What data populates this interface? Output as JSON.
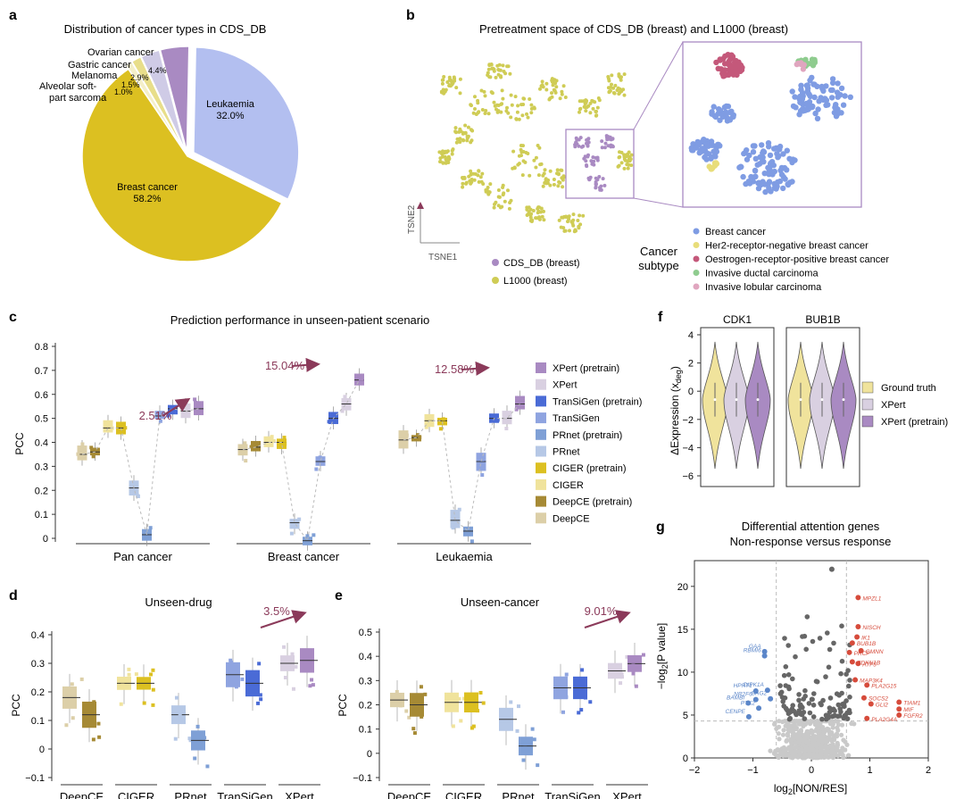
{
  "panel_labels": {
    "a": "a",
    "b": "b",
    "c": "c",
    "d": "d",
    "e": "e",
    "f": "f",
    "g": "g"
  },
  "colors": {
    "deepce": "#dccfa8",
    "deepce_pre": "#a68a35",
    "ciger": "#f0e39c",
    "ciger_pre": "#dcc021",
    "prnet": "#b6c8e6",
    "prnet_pre": "#7fa0d6",
    "transigen": "#8fa4e0",
    "transigen_pre": "#4a6bd6",
    "xpert": "#d9d0e1",
    "xpert_pre": "#a98ac2",
    "arrow": "#8b3a5a",
    "breast": "#7f9ce3",
    "her2neg": "#e8dd7a",
    "er_pos": "#c4587a",
    "ductal": "#8fcc8f",
    "lobular": "#e0a6bf",
    "cds": "#a98ac2",
    "l1000": "#cfcc55",
    "volcano_red": "#d64b3b",
    "volcano_blue": "#5b86c9",
    "volcano_dark": "#666666",
    "volcano_light": "#c9c9c9"
  },
  "chart_data": [
    {
      "id": "a",
      "type": "pie",
      "title": "Distribution of cancer types in CDS_DB",
      "slices": [
        {
          "label": "Breast cancer",
          "value": 58.2,
          "display": "58.2%"
        },
        {
          "label": "Leukaemia",
          "value": 32.0,
          "display": "32.0%"
        },
        {
          "label": "Ovarian cancer",
          "value": 4.4,
          "display": "4.4%"
        },
        {
          "label": "Gastric cancer",
          "value": 2.9,
          "display": "2.9%"
        },
        {
          "label": "Melanoma",
          "value": 1.5,
          "display": "1.5%"
        },
        {
          "label": "Alveolar soft-part sarcoma",
          "value": 1.0,
          "display": "1.0%"
        }
      ]
    },
    {
      "id": "b",
      "type": "scatter",
      "title": "Pretreatment space of  CDS_DB (breast) and L1000 (breast)",
      "xlabel": "TSNE1",
      "ylabel": "TSNE2",
      "legend": [
        {
          "label": "CDS_DB (breast)"
        },
        {
          "label": "L1000 (breast)"
        }
      ],
      "subtype_title": "Cancer subtype",
      "subtypes": [
        "Breast cancer",
        "Her2-receptor-negative breast cancer",
        "Oestrogen-receptor-positive breast cancer",
        "Invasive ductal carcinoma",
        "Invasive lobular carcinoma"
      ]
    },
    {
      "id": "c",
      "type": "box",
      "title": "Prediction performance in unseen-patient scenario",
      "ylabel": "PCC",
      "ylim": [
        0,
        0.8
      ],
      "yticks": [
        "0",
        "0.1",
        "0.2",
        "0.3",
        "0.4",
        "0.5",
        "0.6",
        "0.7",
        "0.8"
      ],
      "groups": [
        "Pan cancer",
        "Breast cancer",
        "Leukaemia"
      ],
      "methods": [
        "DeepCE",
        "DeepCE (pretrain)",
        "CIGER",
        "CIGER (pretrain)",
        "PRnet",
        "PRnet (pretrain)",
        "TranSiGen",
        "TranSiGen (pretrain)",
        "XPert",
        "XPert (pretrain)"
      ],
      "medians": [
        [
          0.35,
          0.36,
          0.46,
          0.46,
          0.21,
          0.015,
          0.51,
          0.54,
          0.53,
          0.54
        ],
        [
          0.37,
          0.38,
          0.4,
          0.4,
          0.065,
          -0.01,
          0.32,
          0.5,
          0.56,
          0.66
        ],
        [
          0.41,
          0.42,
          0.49,
          0.49,
          0.075,
          0.03,
          0.32,
          0.5,
          0.5,
          0.56
        ]
      ],
      "annotations": [
        "2.51%",
        "15.04%",
        "12.58%"
      ],
      "legend": [
        "XPert (pretrain)",
        "XPert",
        "TranSiGen (pretrain)",
        "TranSiGen",
        "PRnet (pretrain)",
        "PRnet",
        "CIGER (pretrain)",
        "CIGER",
        "DeepCE (pretrain)",
        "DeepCE"
      ]
    },
    {
      "id": "d",
      "type": "box",
      "title": "Unseen-drug",
      "ylabel": "PCC",
      "ylim": [
        -0.1,
        0.4
      ],
      "yticks": [
        "−0.1",
        "0",
        "0.1",
        "0.2",
        "0.3",
        "0.4"
      ],
      "categories": [
        "DeepCE",
        "CIGER",
        "PRnet",
        "TranSiGen",
        "XPert"
      ],
      "medians": [
        [
          0.18,
          0.12
        ],
        [
          0.23,
          0.23
        ],
        [
          0.12,
          0.03
        ],
        [
          0.26,
          0.23
        ],
        [
          0.3,
          0.31
        ]
      ],
      "annotation": "3.5%"
    },
    {
      "id": "e",
      "type": "box",
      "title": "Unseen-cancer",
      "ylabel": "PCC",
      "ylim": [
        -0.1,
        0.5
      ],
      "yticks": [
        "−0.1",
        "0",
        "0.1",
        "0.2",
        "0.3",
        "0.4",
        "0.5"
      ],
      "categories": [
        "DeepCE",
        "CIGER",
        "PRnet",
        "TranSiGen",
        "XPert"
      ],
      "medians": [
        [
          0.22,
          0.2
        ],
        [
          0.21,
          0.21
        ],
        [
          0.14,
          0.03
        ],
        [
          0.27,
          0.27
        ],
        [
          0.34,
          0.37
        ]
      ],
      "annotation": "9.01%"
    },
    {
      "id": "f",
      "type": "violin",
      "ylabel": "ΔExpression (x",
      "ylabel_sub": "deg",
      "ylabel_close": ")",
      "ylim": [
        -6,
        4
      ],
      "yticks": [
        "4",
        "2",
        "0",
        "−2",
        "−4",
        "−6"
      ],
      "panels": [
        "CDK1",
        "BUB1B"
      ],
      "legend": [
        "Ground truth",
        "XPert",
        "XPert (pretrain)"
      ]
    },
    {
      "id": "g",
      "type": "scatter",
      "title": "Differential attention genes",
      "subtitle": "Non-response versus response",
      "xlabel": "log",
      "xlabel_sub": "2",
      "xlabel_rest": "[NON/RES]",
      "ylabel": "−log",
      "ylabel_sub": "2",
      "ylabel_rest": "[P value]",
      "xticks": [
        "−2",
        "−1",
        "0",
        "1",
        "2"
      ],
      "yticks": [
        "0",
        "5",
        "10",
        "15",
        "20"
      ],
      "xlim": [
        -2,
        2
      ],
      "ylim": [
        0,
        23
      ],
      "labeled_up": [
        {
          "label": "MPZL1",
          "x": 0.8,
          "y": 18.7
        },
        {
          "label": "NISCH",
          "x": 0.8,
          "y": 15.3
        },
        {
          "label": "IK1",
          "x": 0.78,
          "y": 14.1
        },
        {
          "label": "BUB1B",
          "x": 0.7,
          "y": 13.4
        },
        {
          "label": "GMNN",
          "x": 0.85,
          "y": 12.5
        },
        {
          "label": "PRCP",
          "x": 0.65,
          "y": 12.3
        },
        {
          "label": "ATF5",
          "x": 0.8,
          "y": 11.0
        },
        {
          "label": "CDKN1B",
          "x": 0.7,
          "y": 11.2
        },
        {
          "label": "MAP3K4",
          "x": 0.75,
          "y": 9.1
        },
        {
          "label": "PLA2G15",
          "x": 0.95,
          "y": 8.5
        },
        {
          "label": "SOCS2",
          "x": 0.9,
          "y": 7.0
        },
        {
          "label": "GLI2",
          "x": 1.02,
          "y": 6.3
        },
        {
          "label": "TIAM1",
          "x": 1.5,
          "y": 6.5
        },
        {
          "label": "MIF",
          "x": 1.5,
          "y": 5.7
        },
        {
          "label": "FGFR2",
          "x": 1.5,
          "y": 5.0
        },
        {
          "label": "PLA2G4A",
          "x": 0.95,
          "y": 4.6
        }
      ],
      "labeled_down": [
        {
          "label": "GAA",
          "x": -0.8,
          "y": 12.4
        },
        {
          "label": "RBMI6",
          "x": -0.8,
          "y": 11.9
        },
        {
          "label": "HPRT1",
          "x": -0.95,
          "y": 7.8
        },
        {
          "label": "DIPK1A",
          "x": -0.75,
          "y": 7.9
        },
        {
          "label": "NR2F6",
          "x": -0.95,
          "y": 6.8
        },
        {
          "label": "BAG2",
          "x": -0.7,
          "y": 6.9
        },
        {
          "label": "BAMBI",
          "x": -1.08,
          "y": 6.4
        },
        {
          "label": "PTK2",
          "x": -0.9,
          "y": 5.8
        },
        {
          "label": "CENPE",
          "x": -1.07,
          "y": 4.8
        }
      ]
    }
  ]
}
